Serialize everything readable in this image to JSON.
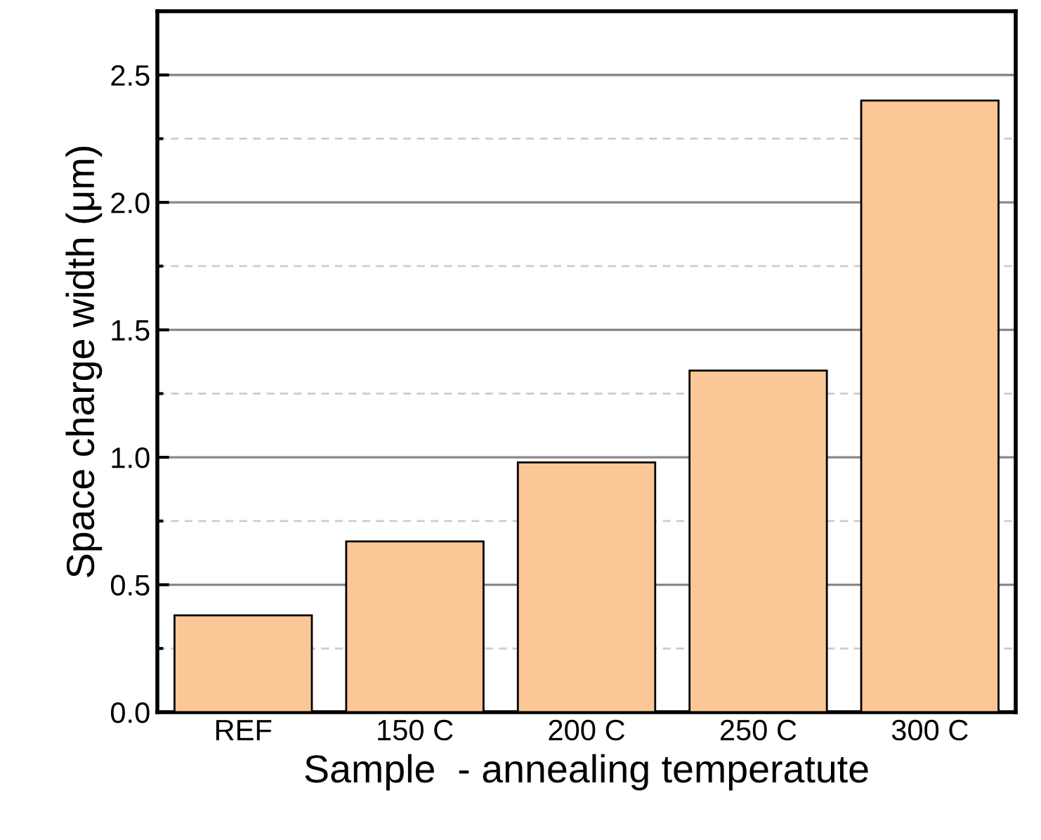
{
  "chart_data": {
    "type": "bar",
    "xlabel": "Sample  - annealing temperatute",
    "ylabel": "Space charge width (μm)",
    "categories": [
      "REF",
      "150 C",
      "200 C",
      "250 C",
      "300 C"
    ],
    "values": [
      0.38,
      0.67,
      0.98,
      1.34,
      2.4
    ],
    "color": "#fbc796",
    "ylim": [
      0,
      2.75
    ],
    "yticks": [
      {
        "value": 0,
        "label": "0.0"
      },
      0.5,
      {
        "value": 1,
        "label": "1.0"
      },
      1.5,
      {
        "value": 2,
        "label": "2.0"
      },
      2.5
    ],
    "grid": "y",
    "legend": false
  }
}
